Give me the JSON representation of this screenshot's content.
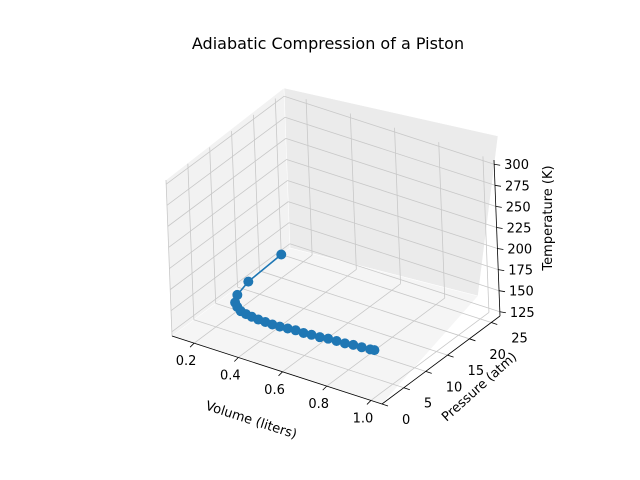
{
  "chart_data": {
    "type": "line",
    "projection": "3d",
    "title": "Adiabatic Compression of a Piston",
    "xlabel": "Volume (liters)",
    "ylabel": "Pressure (atm)",
    "zlabel": "Temperature (K)",
    "xlim": [
      0.1,
      1.05
    ],
    "ylim": [
      0,
      27
    ],
    "zlim": [
      120,
      305
    ],
    "xticks": [
      "0.2",
      "0.4",
      "0.6",
      "0.8",
      "1.0"
    ],
    "yticks": [
      "0",
      "5",
      "10",
      "15",
      "20",
      "25"
    ],
    "zticks": [
      "125",
      "150",
      "175",
      "200",
      "225",
      "250",
      "275",
      "300"
    ],
    "grid": true,
    "marker": "circle",
    "color": "#1f77b4",
    "series": [
      {
        "points": [
          {
            "volume": 0.1,
            "pressure": 25.0,
            "temperature": 120
          },
          {
            "volume": 0.14,
            "pressure": 15.5,
            "temperature": 128
          },
          {
            "volume": 0.18,
            "pressure": 11.0,
            "temperature": 133
          },
          {
            "volume": 0.22,
            "pressure": 8.5,
            "temperature": 137
          },
          {
            "volume": 0.26,
            "pressure": 7.0,
            "temperature": 141
          },
          {
            "volume": 0.3,
            "pressure": 5.8,
            "temperature": 144
          },
          {
            "volume": 0.34,
            "pressure": 5.0,
            "temperature": 147
          },
          {
            "volume": 0.38,
            "pressure": 4.3,
            "temperature": 150
          },
          {
            "volume": 0.42,
            "pressure": 3.8,
            "temperature": 152
          },
          {
            "volume": 0.46,
            "pressure": 3.4,
            "temperature": 154
          },
          {
            "volume": 0.5,
            "pressure": 3.0,
            "temperature": 156
          },
          {
            "volume": 0.54,
            "pressure": 2.7,
            "temperature": 158
          },
          {
            "volume": 0.58,
            "pressure": 2.5,
            "temperature": 160
          },
          {
            "volume": 0.62,
            "pressure": 2.3,
            "temperature": 162
          },
          {
            "volume": 0.66,
            "pressure": 2.1,
            "temperature": 163
          },
          {
            "volume": 0.7,
            "pressure": 1.9,
            "temperature": 165
          },
          {
            "volume": 0.74,
            "pressure": 1.8,
            "temperature": 166
          },
          {
            "volume": 0.78,
            "pressure": 1.7,
            "temperature": 168
          },
          {
            "volume": 0.82,
            "pressure": 1.6,
            "temperature": 169
          },
          {
            "volume": 0.86,
            "pressure": 1.5,
            "temperature": 170
          },
          {
            "volume": 0.9,
            "pressure": 1.4,
            "temperature": 172
          },
          {
            "volume": 0.94,
            "pressure": 1.3,
            "temperature": 173
          },
          {
            "volume": 0.98,
            "pressure": 1.25,
            "temperature": 174
          },
          {
            "volume": 1.0,
            "pressure": 1.2,
            "temperature": 175
          }
        ]
      }
    ]
  }
}
